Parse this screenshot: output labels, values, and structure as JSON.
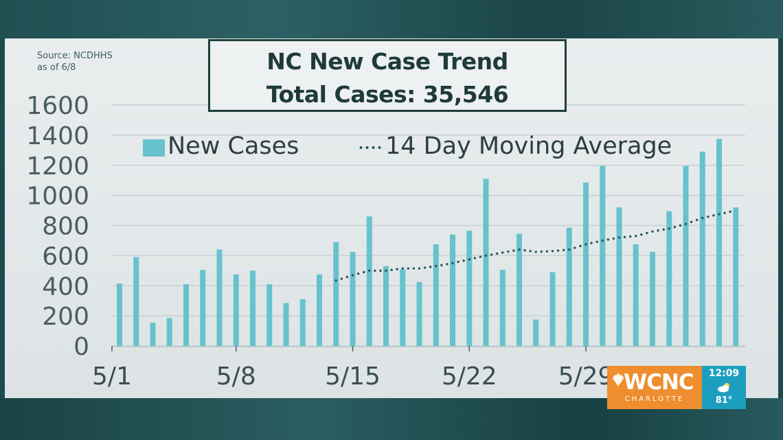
{
  "source": {
    "line1": "Source: NCDHHS",
    "line2": "as of 6/8"
  },
  "title": {
    "line1": "NC New Case Trend",
    "line2": "Total Cases: 35,546"
  },
  "legend": {
    "bars_label": "New Cases",
    "line_label": "14 Day Moving Average"
  },
  "branding": {
    "logo_text": "WCNC",
    "logo_subtext": "CHARLOTTE",
    "time": "12:09",
    "temperature": "81°",
    "weather_icon": "partly-cloudy-icon"
  },
  "colors": {
    "bar": "#67c2cd",
    "average_line": "#2a5557",
    "logo": "#ee8e2e",
    "clock_box": "#1c9fbf"
  },
  "chart_data": {
    "type": "bar",
    "categories": [
      "5/1",
      "5/2",
      "5/3",
      "5/4",
      "5/5",
      "5/6",
      "5/7",
      "5/8",
      "5/9",
      "5/10",
      "5/11",
      "5/12",
      "5/13",
      "5/14",
      "5/15",
      "5/16",
      "5/17",
      "5/18",
      "5/19",
      "5/20",
      "5/21",
      "5/22",
      "5/23",
      "5/24",
      "5/25",
      "5/26",
      "5/27",
      "5/28",
      "5/29",
      "5/30",
      "5/31",
      "6/1",
      "6/2",
      "6/3",
      "6/4",
      "6/5",
      "6/6",
      "6/7"
    ],
    "x_tick_labels": [
      "5/1",
      "5/8",
      "5/15",
      "5/22",
      "5/29"
    ],
    "series": [
      {
        "name": "New Cases",
        "type": "bar",
        "values": [
          415,
          590,
          155,
          185,
          410,
          505,
          640,
          475,
          500,
          410,
          285,
          310,
          475,
          690,
          625,
          860,
          530,
          510,
          425,
          675,
          740,
          765,
          1110,
          505,
          745,
          175,
          490,
          785,
          1085,
          1195,
          920,
          675,
          625,
          895,
          1195,
          1290,
          1375,
          920
        ]
      },
      {
        "name": "14 Day Moving Average",
        "type": "dotted-line",
        "values": [
          null,
          null,
          null,
          null,
          null,
          null,
          null,
          null,
          null,
          null,
          null,
          null,
          null,
          435,
          470,
          500,
          500,
          515,
          515,
          530,
          550,
          575,
          600,
          620,
          640,
          625,
          630,
          640,
          675,
          700,
          720,
          730,
          760,
          780,
          810,
          850,
          875,
          900
        ]
      }
    ],
    "yticks": [
      0,
      200,
      400,
      600,
      800,
      1000,
      1200,
      1400,
      1600
    ],
    "ylim": [
      0,
      1600
    ],
    "grid": true,
    "legend_position": "top"
  }
}
